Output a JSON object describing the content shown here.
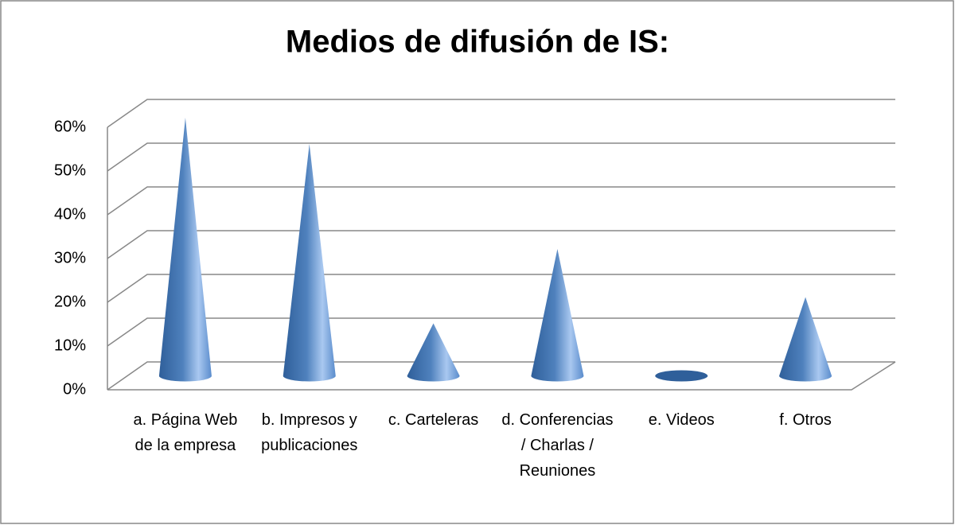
{
  "chart_data": {
    "type": "cone",
    "title": "Medios de difusión de IS:",
    "categories": [
      "a. Página Web de la empresa",
      "b. Impresos y publicaciones",
      "c. Carteleras",
      "d. Conferencias / Charlas / Reuniones",
      "e. Videos",
      "f. Otros"
    ],
    "values": [
      59,
      53,
      12,
      29,
      0,
      18
    ],
    "color": "#4f81bd",
    "ylim": [
      0,
      60
    ],
    "yticks": [
      {
        "value": 0,
        "label": "0%"
      },
      {
        "value": 10,
        "label": "10%"
      },
      {
        "value": 20,
        "label": "20%"
      },
      {
        "value": 30,
        "label": "30%"
      },
      {
        "value": 40,
        "label": "40%"
      },
      {
        "value": 50,
        "label": "50%"
      },
      {
        "value": 60,
        "label": "60%"
      }
    ],
    "grid": true
  }
}
